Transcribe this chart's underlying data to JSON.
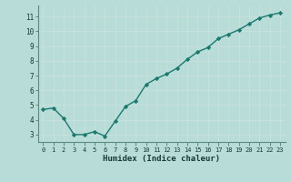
{
  "x": [
    0,
    1,
    2,
    3,
    4,
    5,
    6,
    7,
    8,
    9,
    10,
    11,
    12,
    13,
    14,
    15,
    16,
    17,
    18,
    19,
    20,
    21,
    22,
    23
  ],
  "y": [
    4.7,
    4.8,
    4.1,
    3.0,
    3.0,
    3.2,
    2.9,
    3.9,
    4.9,
    5.3,
    6.4,
    6.8,
    7.1,
    7.5,
    8.1,
    8.6,
    8.9,
    9.5,
    9.8,
    10.1,
    10.5,
    10.9,
    11.1,
    11.25
  ],
  "xlabel": "Humidex (Indice chaleur)",
  "ylim": [
    2.5,
    11.75
  ],
  "xlim": [
    -0.5,
    23.5
  ],
  "yticks": [
    3,
    4,
    5,
    6,
    7,
    8,
    9,
    10,
    11
  ],
  "xticks": [
    0,
    1,
    2,
    3,
    4,
    5,
    6,
    7,
    8,
    9,
    10,
    11,
    12,
    13,
    14,
    15,
    16,
    17,
    18,
    19,
    20,
    21,
    22,
    23
  ],
  "line_color": "#1a7a6e",
  "marker_color": "#1a7a6e",
  "bg_color": "#b8dcd8",
  "grid_color": "#c8e0dc",
  "axis_color": "#2a6a60",
  "tick_color": "#1a3a34",
  "label_color": "#1a3a34",
  "spine_color": "#5a8a80"
}
